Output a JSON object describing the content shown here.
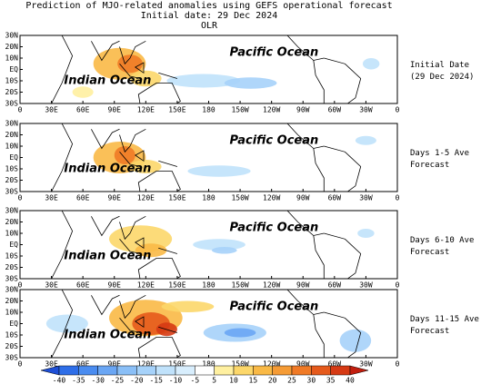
{
  "header": {
    "title": [
      "Prediction of MJO-related anomalies using GEFS operational forecast",
      "Initial date: 29 Dec 2024",
      "OLR"
    ]
  },
  "axes": {
    "lat_labels": [
      "30N",
      "20N",
      "10N",
      "EQ",
      "10S",
      "20S",
      "30S"
    ],
    "lon_labels": [
      "0",
      "30E",
      "60E",
      "90E",
      "120E",
      "150E",
      "180",
      "150W",
      "120W",
      "90W",
      "60W",
      "30W",
      "0"
    ]
  },
  "panels": [
    {
      "side_label": [
        "Initial Date",
        "(29 Dec 2024)"
      ],
      "ocean_labels": [
        "Pacific Ocean",
        "Indian Ocean"
      ]
    },
    {
      "side_label": [
        "Days 1-5 Ave",
        "Forecast"
      ],
      "ocean_labels": [
        "Pacific Ocean",
        "Indian Ocean"
      ]
    },
    {
      "side_label": [
        "Days 6-10 Ave",
        "Forecast"
      ],
      "ocean_labels": [
        "Pacific Ocean",
        "Indian Ocean"
      ]
    },
    {
      "side_label": [
        "Days 11-15 Ave",
        "Forecast"
      ],
      "ocean_labels": [
        "Pacific Ocean",
        "Indian Ocean"
      ]
    }
  ],
  "colorbar": {
    "labels": [
      -40,
      -35,
      -30,
      -25,
      -20,
      -15,
      -10,
      -5,
      5,
      10,
      15,
      20,
      25,
      30,
      35,
      40
    ],
    "colors": [
      "#1e4fd6",
      "#2e6ee8",
      "#4a8cf0",
      "#6aa6f4",
      "#8abff7",
      "#a6d2fa",
      "#c0e2fb",
      "#d8eefd",
      "#ffffff",
      "#fff0a0",
      "#fcd76a",
      "#f9b946",
      "#f59b35",
      "#f07a26",
      "#e55a1c",
      "#d63a14",
      "#c21e0e"
    ]
  }
}
